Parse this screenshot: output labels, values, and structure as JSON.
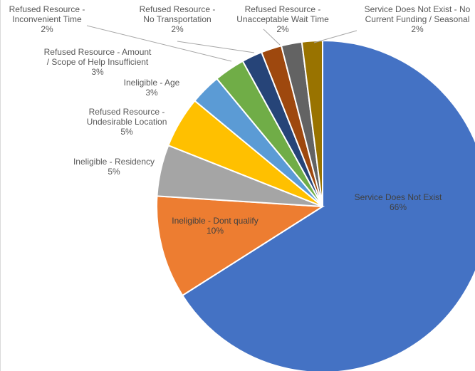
{
  "chart_data": {
    "type": "pie",
    "title": "",
    "slices": [
      {
        "label": "Service  Does Not Exist",
        "value": 66,
        "value_label": "66%",
        "color": "#4472C4"
      },
      {
        "label": "Ineligible - Dont qualify",
        "value": 10,
        "value_label": "10%",
        "color": "#ED7D31"
      },
      {
        "label": "Ineligible - Residency",
        "value": 5,
        "value_label": "5%",
        "color": "#A5A5A5"
      },
      {
        "label": "Refused Resource - Undesirable Location",
        "value": 5,
        "value_label": "5%",
        "color": "#FFC000"
      },
      {
        "label": "Ineligible - Age",
        "value": 3,
        "value_label": "3%",
        "color": "#5B9BD5"
      },
      {
        "label": "Refused Resource - Amount / Scope of Help Insufficient",
        "value": 3,
        "value_label": "3%",
        "color": "#70AD47"
      },
      {
        "label": "Refused Resource - Inconvenient Time",
        "value": 2,
        "value_label": "2%",
        "color": "#264478"
      },
      {
        "label": "Refused Resource - No Transportation",
        "value": 2,
        "value_label": "2%",
        "color": "#9E480E"
      },
      {
        "label": "Refused Resource - Unacceptable Wait Time",
        "value": 2,
        "value_label": "2%",
        "color": "#636363"
      },
      {
        "label": "Service Does Not Exist - No Current Funding / Seasonal",
        "value": 2,
        "value_label": "2%",
        "color": "#997300"
      }
    ],
    "labels": [
      {
        "lines": [
          "Service  Does Not Exist",
          "66%"
        ]
      },
      {
        "lines": [
          "Ineligible - Dont qualify",
          "10%"
        ]
      },
      {
        "lines": [
          "Ineligible - Residency",
          "5%"
        ]
      },
      {
        "lines": [
          "Refused Resource -",
          "Undesirable Location",
          "5%"
        ]
      },
      {
        "lines": [
          "Ineligible - Age",
          "3%"
        ]
      },
      {
        "lines": [
          "Refused Resource - Amount",
          "/ Scope of Help Insufficient",
          "3%"
        ]
      },
      {
        "lines": [
          "Refused Resource -",
          "Inconvenient Time",
          "2%"
        ]
      },
      {
        "lines": [
          "Refused Resource -",
          "No Transportation",
          "2%"
        ]
      },
      {
        "lines": [
          "Refused Resource -",
          "Unacceptable Wait Time",
          "2%"
        ]
      },
      {
        "lines": [
          "Service Does Not Exist - No",
          "Current Funding / Seasonal",
          "2%"
        ]
      }
    ],
    "legend": "none"
  }
}
